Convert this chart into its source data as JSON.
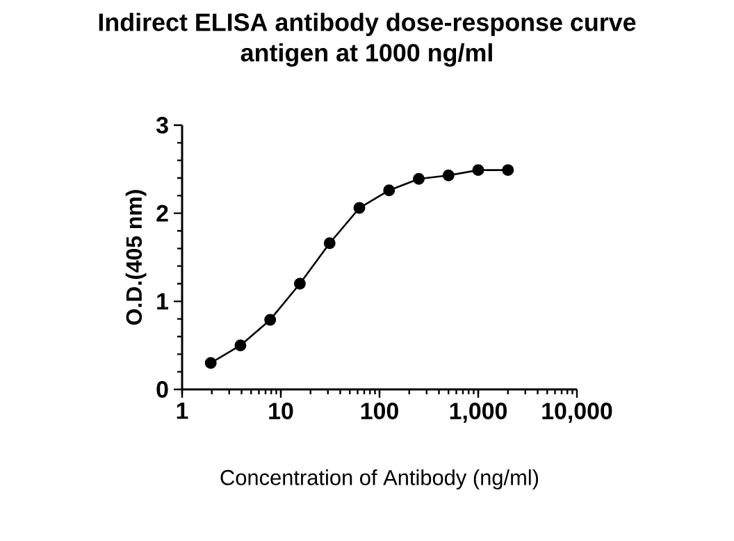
{
  "chart_data": {
    "type": "line",
    "title": "Indirect ELISA antibody dose-response curve\nantigen at 1000 ng/ml",
    "xlabel": "Concentration of Antibody (ng/ml)",
    "ylabel": "O.D.(405 nm)",
    "x": [
      1.95,
      3.9,
      7.8,
      15.6,
      31.25,
      62.5,
      125,
      250,
      500,
      1000,
      2000
    ],
    "series": [
      {
        "color": "#000000",
        "values": [
          0.3,
          0.5,
          0.79,
          1.2,
          1.66,
          2.06,
          2.26,
          2.39,
          2.43,
          2.49,
          2.49
        ]
      }
    ],
    "log": "x",
    "xlim": [
      1,
      10000
    ],
    "xticks": [
      1,
      10,
      100,
      {
        "value": 1000,
        "label": "1,000"
      },
      {
        "value": 10000,
        "label": "10,000"
      }
    ],
    "ylim": [
      0,
      3
    ],
    "yticks": [
      0,
      1,
      2,
      3
    ],
    "marker": "circle",
    "line_style": "solid",
    "grid": false
  }
}
